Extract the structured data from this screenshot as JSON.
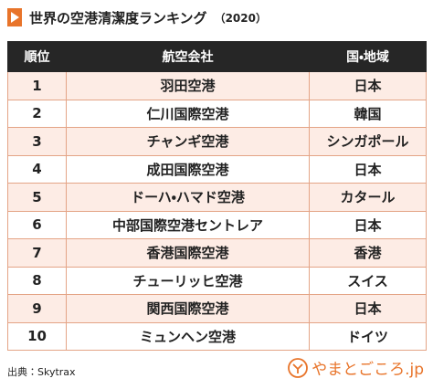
{
  "header": {
    "title": "世界の空港清潔度ランキング",
    "year": "（2020）"
  },
  "table": {
    "columns": [
      "順位",
      "航空会社",
      "国・地域"
    ],
    "rows": [
      [
        "1",
        "羽田空港",
        "日本"
      ],
      [
        "2",
        "仁川国際空港",
        "韓国"
      ],
      [
        "3",
        "チャンギ空港",
        "シンガポール"
      ],
      [
        "4",
        "成田国際空港",
        "日本"
      ],
      [
        "5",
        "ドーハ・ハマド空港",
        "カタール"
      ],
      [
        "6",
        "中部国際空港セントレア",
        "日本"
      ],
      [
        "7",
        "香港国際空港",
        "香港"
      ],
      [
        "8",
        "チューリッヒ空港",
        "スイス"
      ],
      [
        "9",
        "関西国際空港",
        "日本"
      ],
      [
        "10",
        "ミュンヘン空港",
        "ドイツ"
      ]
    ]
  },
  "footer": {
    "source": "出典：Skytrax",
    "logo": "やまとごころ.jp"
  }
}
